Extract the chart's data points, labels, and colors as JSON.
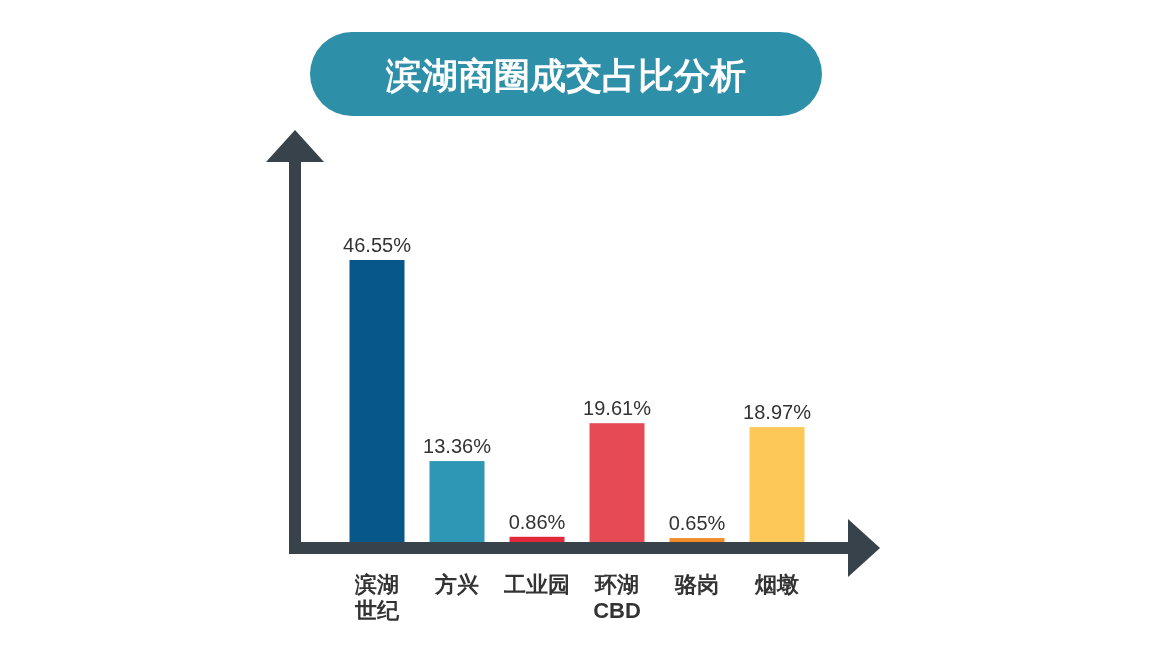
{
  "chart_data": {
    "type": "bar",
    "title": "滨湖商圈成交占比分析",
    "categories": [
      "滨湖世纪",
      "方兴",
      "工业园",
      "环湖CBD",
      "骆岗",
      "烟墩"
    ],
    "values": [
      46.55,
      13.36,
      0.86,
      19.61,
      0.65,
      18.97
    ],
    "colors": [
      "#07578a",
      "#2e97b5",
      "#e02a3a",
      "#e54a55",
      "#f28c28",
      "#fdc858"
    ],
    "value_labels": [
      "46.55%",
      "13.36%",
      "0.86%",
      "19.61%",
      "0.65%",
      "18.97%"
    ]
  }
}
